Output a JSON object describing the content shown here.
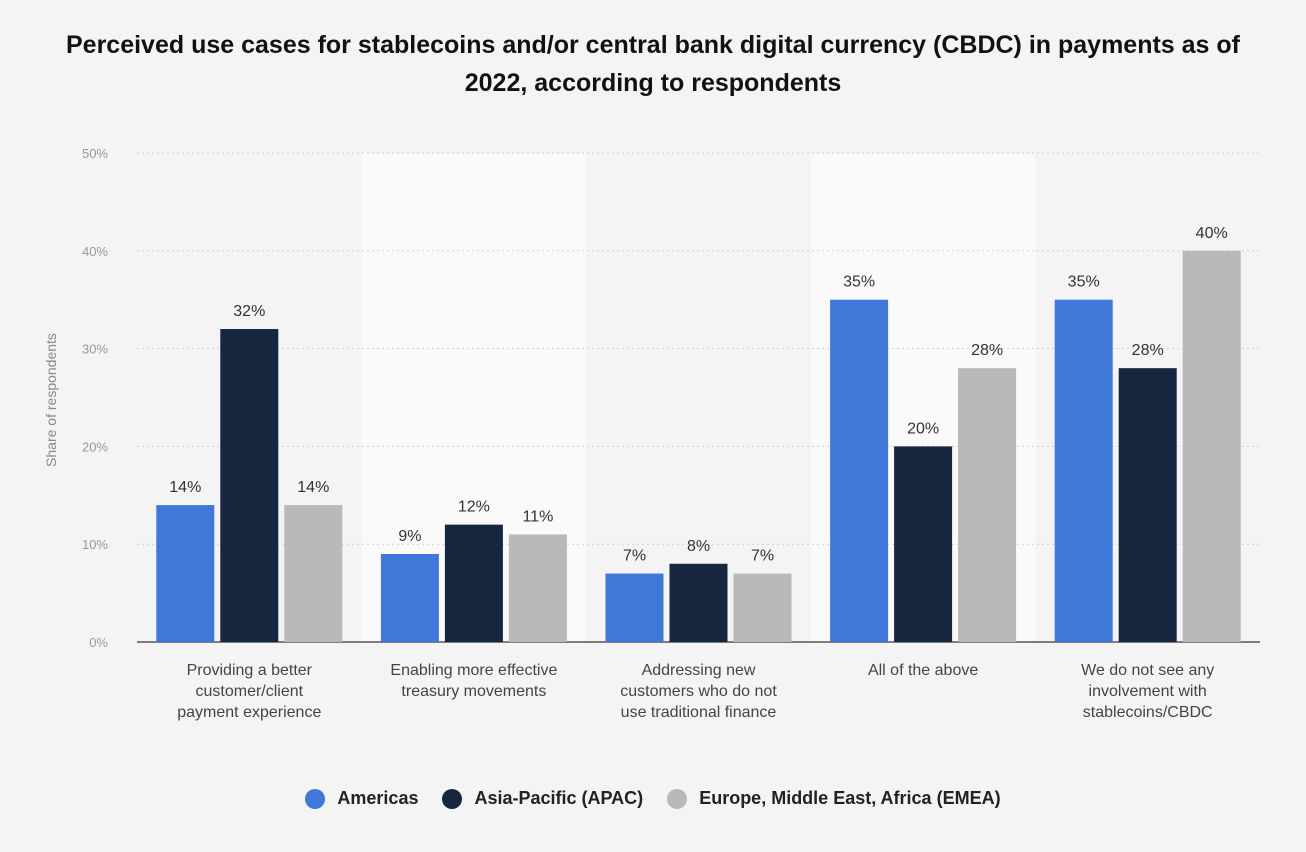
{
  "chart_data": {
    "type": "bar",
    "title": "Perceived use cases for stablecoins and/or central bank digital currency (CBDC) in payments as of 2022, according to respondents",
    "ylabel": "Share of respondents",
    "xlabel": "",
    "ylim": [
      0,
      50
    ],
    "yticks": [
      "0%",
      "10%",
      "20%",
      "30%",
      "40%",
      "50%"
    ],
    "grid": true,
    "legend_position": "bottom",
    "categories": [
      "Providing a better customer/client payment experience",
      "Enabling more effective treasury movements",
      "Addressing new customers who do not use traditional finance",
      "All of the above",
      "We do not see any involvement with stablecoins/CBDC"
    ],
    "series": [
      {
        "name": "Americas",
        "color": "#3f78d8",
        "values": [
          14,
          9,
          7,
          35,
          35
        ],
        "labels": [
          "14%",
          "9%",
          "7%",
          "35%",
          "35%"
        ]
      },
      {
        "name": "Asia-Pacific (APAC)",
        "color": "#16263f",
        "values": [
          32,
          12,
          8,
          20,
          28
        ],
        "labels": [
          "32%",
          "12%",
          "8%",
          "20%",
          "28%"
        ]
      },
      {
        "name": "Europe, Middle East, Africa (EMEA)",
        "color": "#b9b9b9",
        "values": [
          14,
          11,
          7,
          28,
          40
        ],
        "labels": [
          "14%",
          "11%",
          "7%",
          "28%",
          "40%"
        ]
      }
    ]
  }
}
